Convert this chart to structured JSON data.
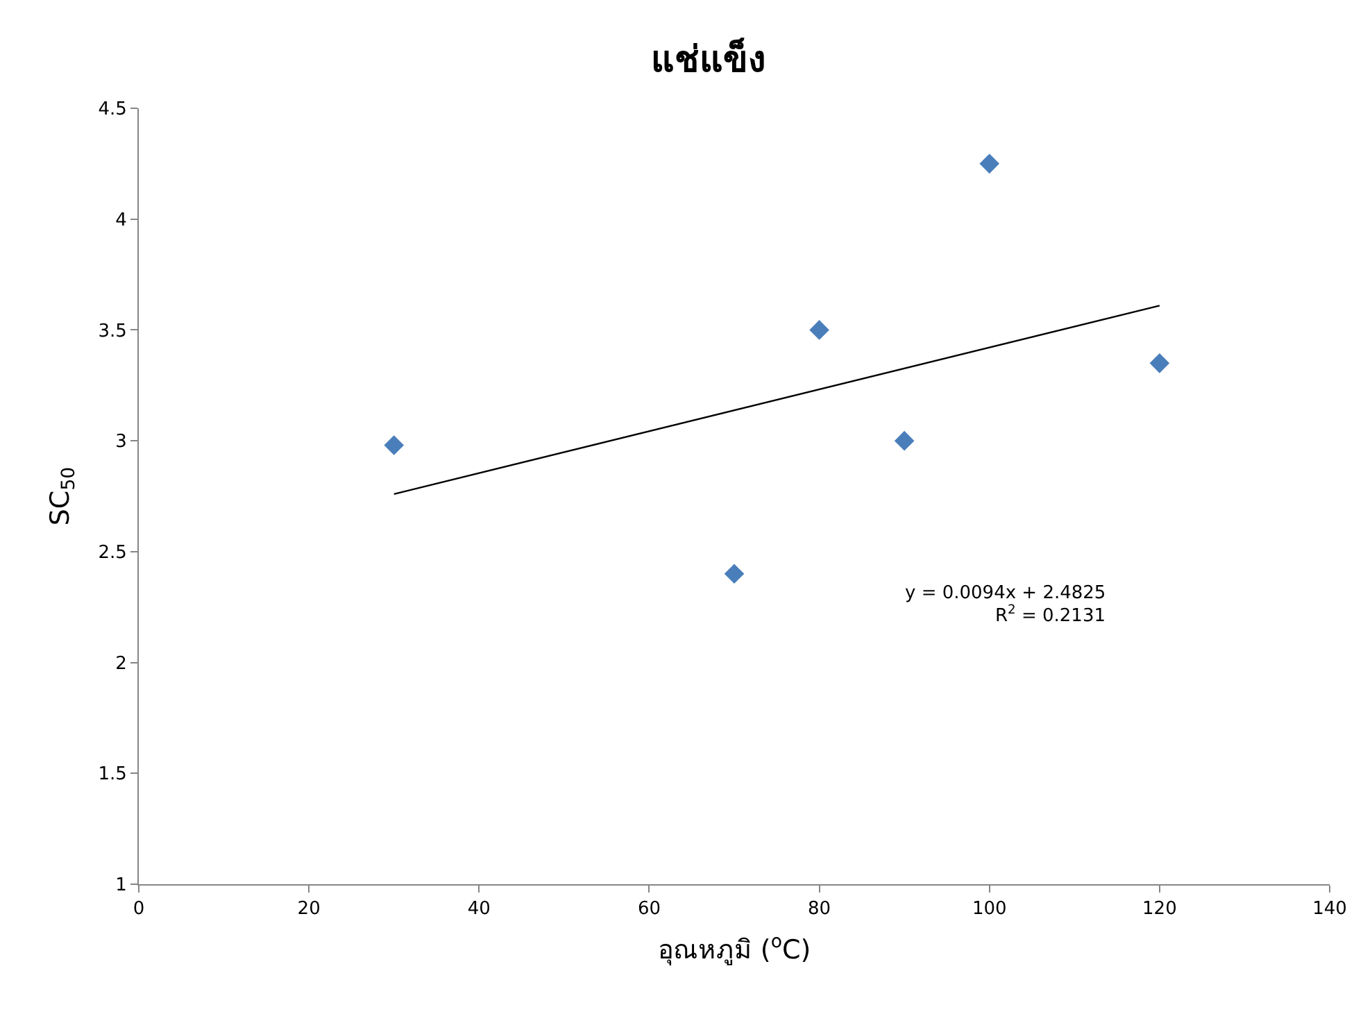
{
  "chart_data": {
    "type": "scatter",
    "title": "แช่แข็ง",
    "xlabel": "อุณหภูมิ ($^{o}$C)",
    "ylabel": "SC$_{50}$",
    "x": [
      30,
      70,
      80,
      90,
      100,
      120
    ],
    "series": [
      {
        "color": "#4a7ebb",
        "marker": "diamond",
        "values": [
          2.98,
          2.4,
          3.5,
          3.0,
          4.25,
          3.35
        ]
      },
      {
        "type": "line",
        "color": "#000000",
        "marker": "none",
        "line_style": "solid",
        "x": [
          30,
          120
        ],
        "values": [
          2.76,
          3.61
        ]
      }
    ],
    "xlim": [
      0,
      140
    ],
    "xticks": [
      0,
      20,
      40,
      60,
      80,
      100,
      120,
      140
    ],
    "ylim": [
      1,
      4.5
    ],
    "yticks": [
      1,
      1.5,
      2,
      2.5,
      3,
      3.5,
      4,
      4.5
    ],
    "annotations": [
      "y = 0.0094x + 2.4825",
      "R$^{2}$ = 0.2131"
    ],
    "grid": false
  }
}
